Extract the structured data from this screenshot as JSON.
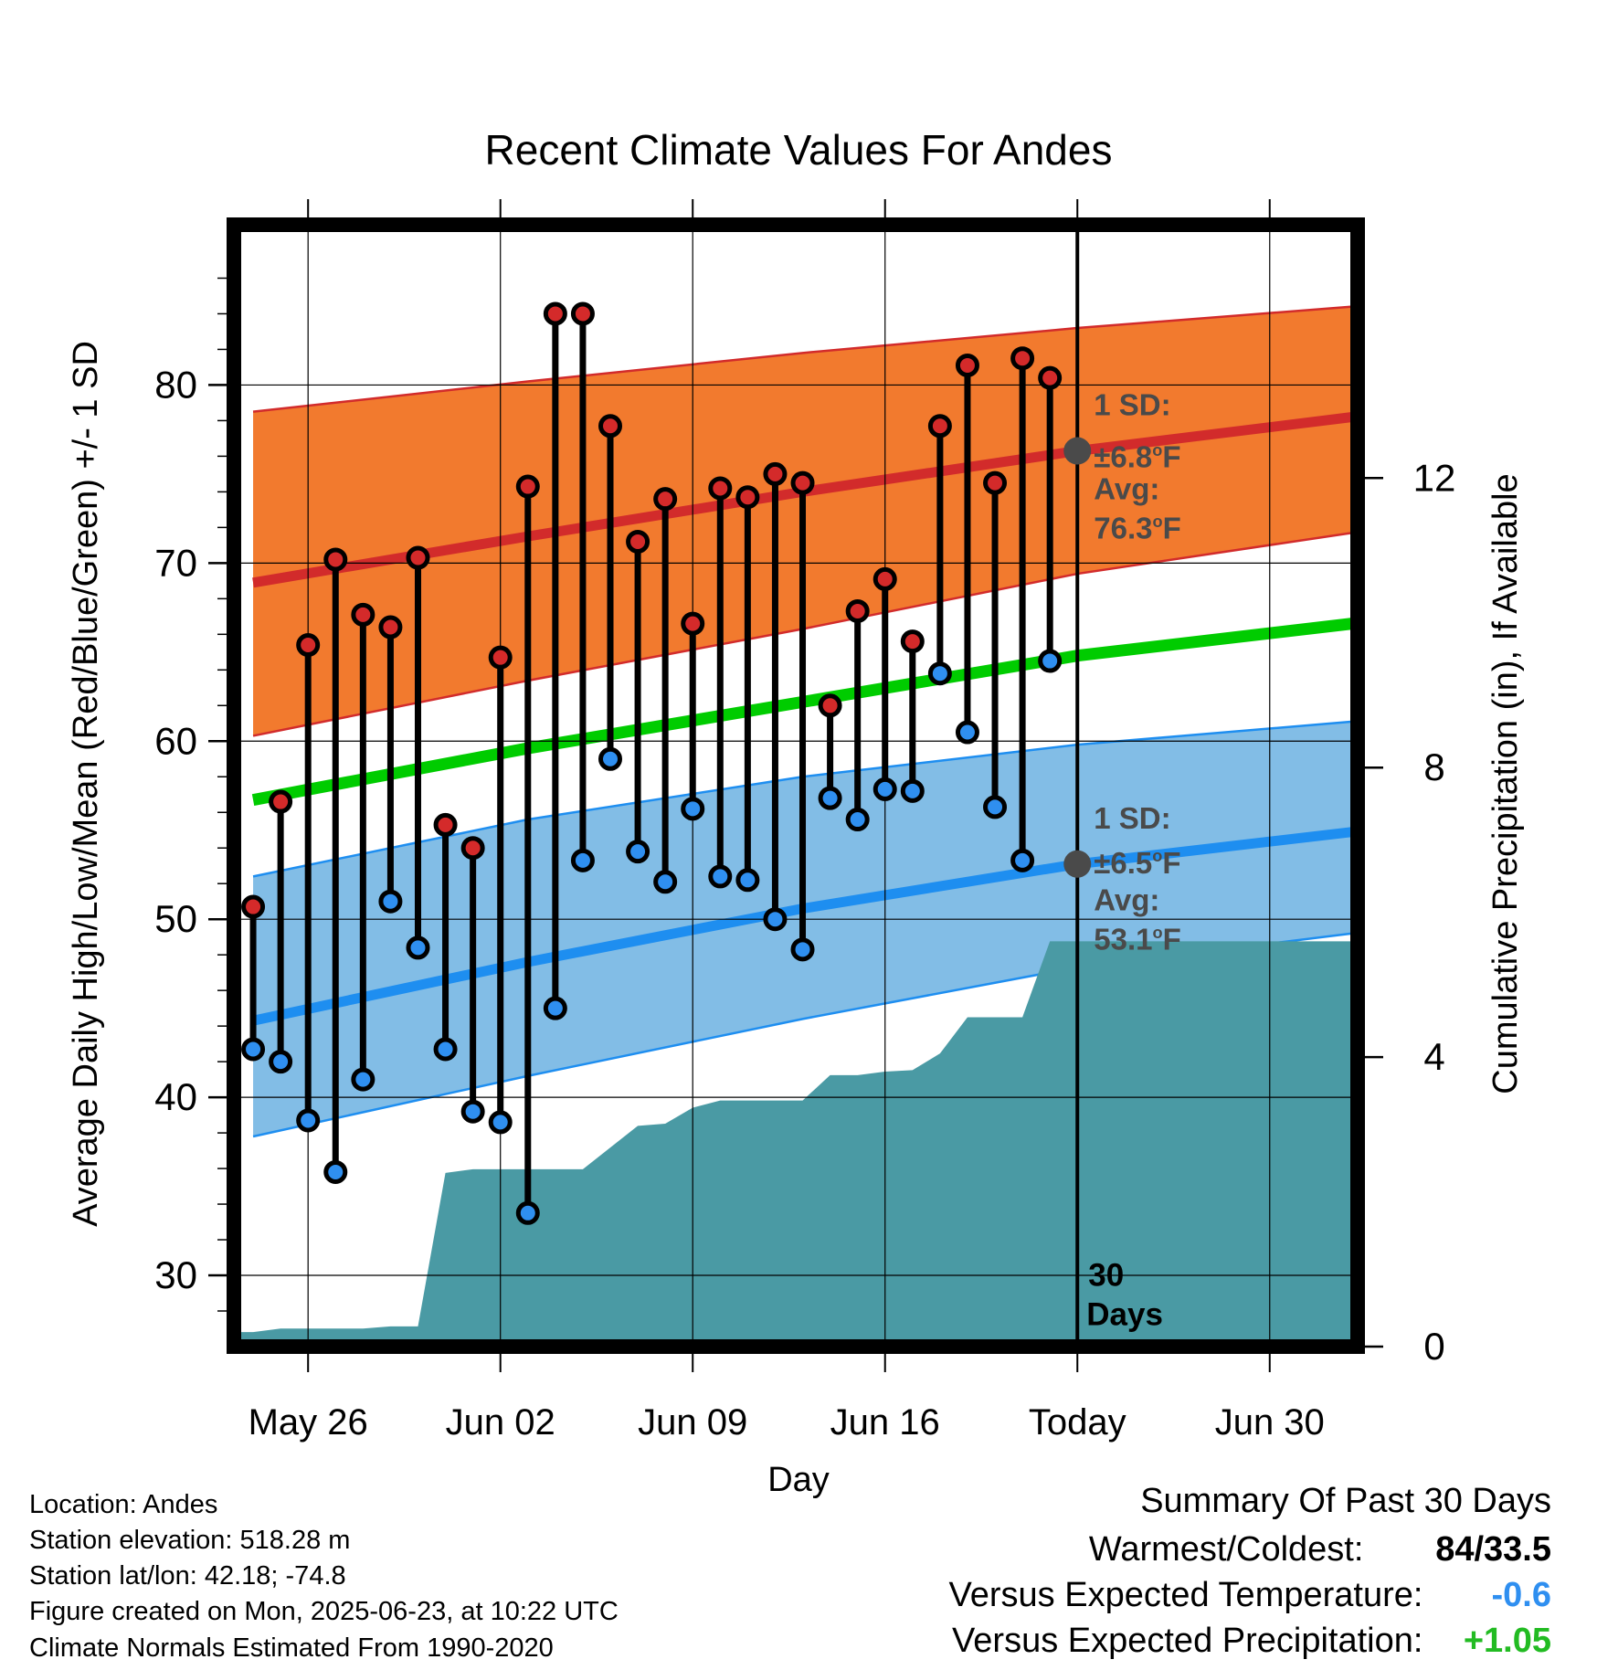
{
  "chart_data": {
    "type": "line",
    "title": "Recent Climate Values For Andes",
    "xlabel": "Day",
    "ylabel": "Average Daily High/Low/Mean (Red/Blue/Green) +/- 1 SD",
    "y2label": "Cumulative Precipitation (in), If Available",
    "x_ticks": [
      "May 26",
      "Jun 02",
      "Jun 09",
      "Jun 16",
      "Today",
      "Jun 30"
    ],
    "x_tick_days": [
      2,
      9,
      16,
      23,
      30,
      37
    ],
    "xlim": [
      -0.7,
      40.2
    ],
    "ylim": [
      26,
      89
    ],
    "y_ticks": [
      30,
      40,
      50,
      60,
      70,
      80
    ],
    "y2lim": [
      0,
      15.5
    ],
    "y2_ticks": [
      0,
      4,
      8,
      12
    ],
    "grid": true,
    "days": [
      0,
      1,
      2,
      3,
      4,
      5,
      6,
      7,
      8,
      9,
      10,
      11,
      12,
      13,
      14,
      15,
      16,
      17,
      18,
      19,
      20,
      21,
      22,
      23,
      24,
      25,
      26,
      27,
      28,
      29
    ],
    "daily_high": [
      50.7,
      56.6,
      65.4,
      70.2,
      67.1,
      66.4,
      70.3,
      55.3,
      54.0,
      64.7,
      74.3,
      84.0,
      84.0,
      77.7,
      71.2,
      73.6,
      66.6,
      74.2,
      73.7,
      75.0,
      74.5,
      62.0,
      67.3,
      69.1,
      65.6,
      77.7,
      81.1,
      74.5,
      81.5,
      80.4
    ],
    "daily_low": [
      42.7,
      42.0,
      38.7,
      35.8,
      41.0,
      51.0,
      48.4,
      42.7,
      39.2,
      38.6,
      33.5,
      45.0,
      53.3,
      59.0,
      53.8,
      52.1,
      56.2,
      52.4,
      52.2,
      50.0,
      48.3,
      56.8,
      55.6,
      57.3,
      57.2,
      63.8,
      60.5,
      56.3,
      53.3,
      64.5
    ],
    "normals_x": [
      0,
      10,
      20,
      30,
      40
    ],
    "normal_high": [
      68.9,
      71.5,
      74.0,
      76.3,
      78.2
    ],
    "normal_high_upper": [
      78.5,
      80.2,
      81.8,
      83.2,
      84.4
    ],
    "normal_high_lower": [
      60.3,
      63.4,
      66.3,
      69.4,
      71.7
    ],
    "normal_mean": [
      56.7,
      59.6,
      62.2,
      64.8,
      66.6
    ],
    "normal_low": [
      44.3,
      47.6,
      50.6,
      53.1,
      54.9
    ],
    "normal_low_upper": [
      52.4,
      55.6,
      58.0,
      59.8,
      61.1
    ],
    "normal_low_lower": [
      37.8,
      41.2,
      44.4,
      47.3,
      49.2
    ],
    "precip_cumulative": [
      0.2,
      0.25,
      0.25,
      0.25,
      0.25,
      0.28,
      0.28,
      2.4,
      2.45,
      2.45,
      2.45,
      2.45,
      2.45,
      2.75,
      3.05,
      3.08,
      3.3,
      3.4,
      3.4,
      3.4,
      3.4,
      3.75,
      3.75,
      3.8,
      3.82,
      4.05,
      4.55,
      4.55,
      4.55,
      5.6
    ],
    "precip_final": 5.6,
    "annotations": {
      "high_sd_label": "1 SD:",
      "high_sd_value": "±6.8°F",
      "high_avg_label": "Avg:",
      "high_avg_value": "76.3°F",
      "high_avg": 76.3,
      "low_sd_label": "1 SD:",
      "low_sd_value": "±6.5°F",
      "low_avg_label": "Avg:",
      "low_avg_value": "53.1°F",
      "low_avg": 53.1,
      "period_label": "30",
      "period_unit": "Days"
    },
    "colors": {
      "high_band": "#f27a2e",
      "high_line": "#d22b2b",
      "low_band": "#82bde6",
      "low_line": "#1e8ef0",
      "mean_line": "#00cc00",
      "precip": "#4a9aa4",
      "high_dot": "#d42a2a",
      "low_dot": "#2f8ff0",
      "avg_marker": "#4a4a4a",
      "annotation_text": "#4a4a4a"
    }
  },
  "footer": {
    "location": "Location: Andes",
    "elevation": "Station elevation: 518.28 m",
    "latlon": "Station lat/lon: 42.18; -74.8",
    "created": "Figure created on Mon, 2025-06-23, at 10:22 UTC",
    "normals": "Climate Normals Estimated From 1990-2020"
  },
  "summary": {
    "title": "Summary Of Past 30 Days",
    "warmest_label": "Warmest/Coldest:",
    "warmest_value": "84/33.5",
    "temp_label": "Versus Expected Temperature:",
    "temp_value": "-0.6",
    "temp_color": "#2f8ff0",
    "precip_label": "Versus Expected Precipitation:",
    "precip_value": "+1.05",
    "precip_color": "#22bb22"
  }
}
